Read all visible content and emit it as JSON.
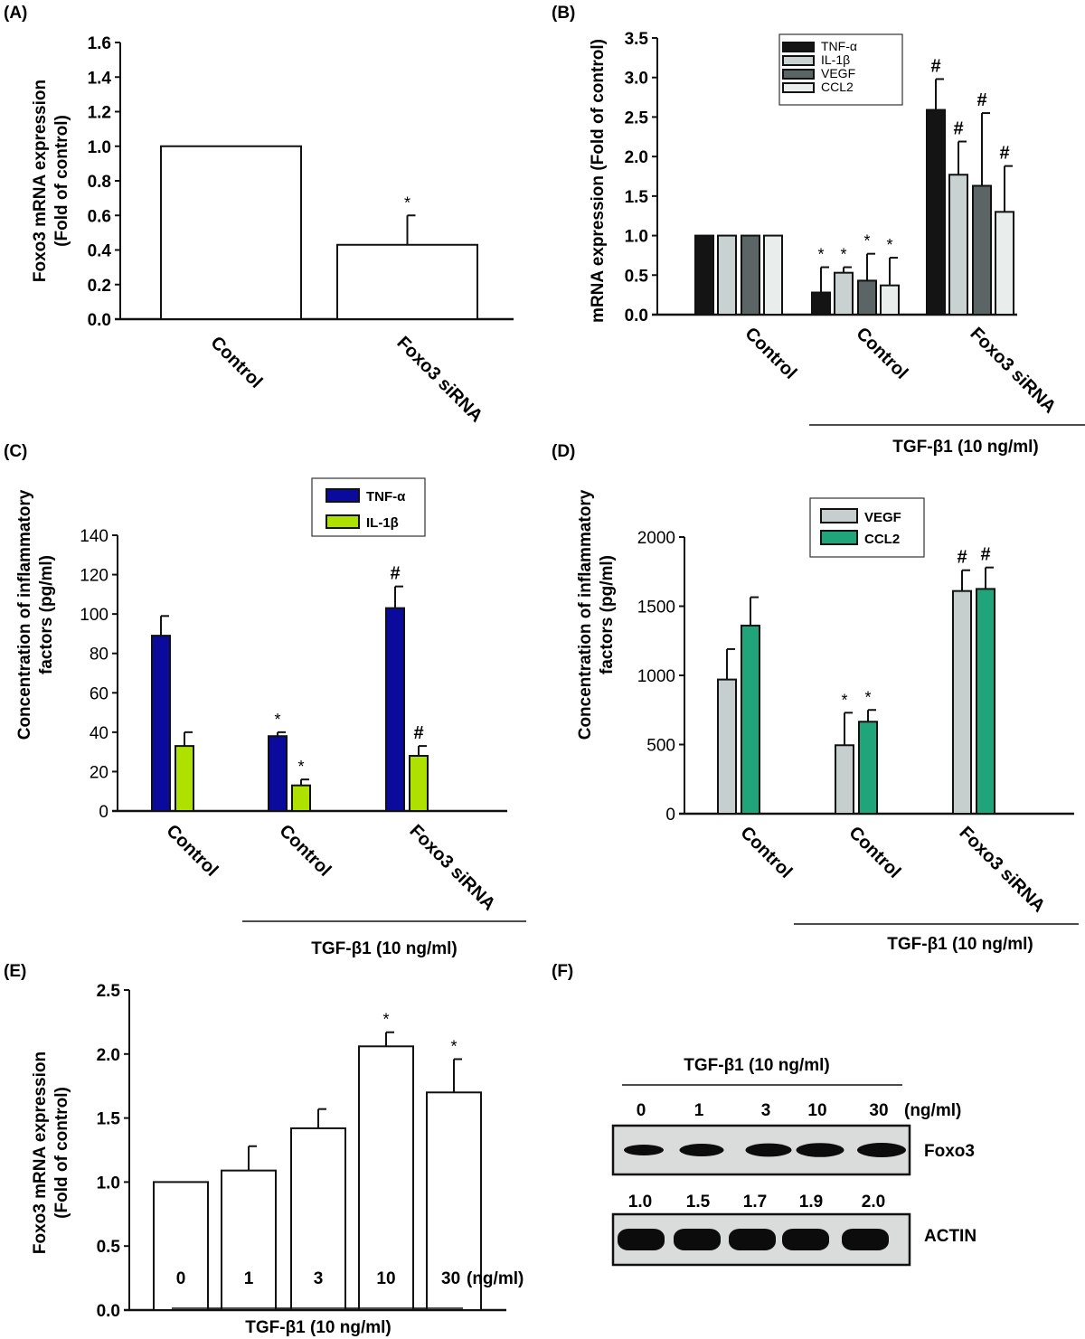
{
  "chart_data": [
    {
      "panel": "(A)",
      "type": "bar",
      "title": "",
      "xlabel": "",
      "ylabel": "Foxo3 mRNA expression\n(Fold of control)",
      "ylim": [
        0,
        1.6
      ],
      "yticks": [
        "0.0",
        "0.2",
        "0.4",
        "0.6",
        "0.8",
        "1.0",
        "1.2",
        "1.4",
        "1.6"
      ],
      "categories": [
        "Control",
        "Foxo3 siRNA"
      ],
      "series": [
        {
          "name": "Foxo3",
          "color": "#ffffff",
          "values": [
            1.0,
            0.43
          ],
          "error_upper": [
            null,
            0.6
          ],
          "marks": [
            "",
            "*"
          ]
        }
      ],
      "group_label": ""
    },
    {
      "panel": "(B)",
      "type": "bar",
      "title": "",
      "xlabel": "",
      "ylabel": "mRNA expression (Fold of control)",
      "ylim": [
        0,
        3.5
      ],
      "yticks": [
        "0.0",
        "0.5",
        "1.0",
        "1.5",
        "2.0",
        "2.5",
        "3.0",
        "3.5"
      ],
      "categories": [
        "Control",
        "Control",
        "Foxo3 siRNA"
      ],
      "legend": "top-center",
      "series": [
        {
          "name": "TNF-α",
          "color": "#141414",
          "values": [
            1.0,
            0.28,
            2.59
          ],
          "error_upper": [
            null,
            0.6,
            2.98
          ],
          "marks": [
            "",
            "*",
            "#"
          ]
        },
        {
          "name": "IL-1β",
          "color": "#c9d1d1",
          "values": [
            1.0,
            0.53,
            1.77
          ],
          "error_upper": [
            null,
            0.6,
            2.19
          ],
          "marks": [
            "",
            "*",
            "#"
          ]
        },
        {
          "name": "VEGF",
          "color": "#5b6565",
          "values": [
            1.0,
            0.43,
            1.63
          ],
          "error_upper": [
            null,
            0.77,
            2.55
          ],
          "marks": [
            "",
            "*",
            "#"
          ]
        },
        {
          "name": "CCL2",
          "color": "#e9edeb",
          "values": [
            1.0,
            0.37,
            1.3
          ],
          "error_upper": [
            null,
            0.72,
            1.88
          ],
          "marks": [
            "",
            "*",
            "#"
          ]
        }
      ],
      "group_label": "TGF-β1 (10 ng/ml)"
    },
    {
      "panel": "(C)",
      "type": "bar",
      "title": "",
      "xlabel": "",
      "ylabel": "Concentration of inflammatory\nfactors (pg/ml)",
      "ylim": [
        0,
        140
      ],
      "yticks": [
        "0",
        "20",
        "40",
        "60",
        "80",
        "100",
        "120",
        "140"
      ],
      "categories": [
        "Control",
        "Control",
        "Foxo3 siRNA"
      ],
      "legend": "top-right",
      "series": [
        {
          "name": "TNF-α",
          "color": "#0a0a9c",
          "values": [
            89,
            38,
            103
          ],
          "error_upper": [
            99,
            40,
            114
          ],
          "marks": [
            "",
            "*",
            "#"
          ]
        },
        {
          "name": "IL-1β",
          "color": "#aee000",
          "values": [
            33,
            13,
            28
          ],
          "error_upper": [
            40,
            16,
            33
          ],
          "marks": [
            "",
            "*",
            "#"
          ]
        }
      ],
      "group_label": "TGF-β1 (10 ng/ml)"
    },
    {
      "panel": "(D)",
      "type": "bar",
      "title": "",
      "xlabel": "",
      "ylabel": "Concentration of inflammatory\nfactors (pg/ml)",
      "ylim": [
        0,
        2000
      ],
      "yticks": [
        "0",
        "500",
        "1000",
        "1500",
        "2000"
      ],
      "categories": [
        "Control",
        "Control",
        "Foxo3 siRNA"
      ],
      "legend": "top-center",
      "series": [
        {
          "name": "VEGF",
          "color": "#c6cfcd",
          "values": [
            970,
            495,
            1610
          ],
          "error_upper": [
            1190,
            730,
            1760
          ],
          "marks": [
            "",
            "*",
            "#"
          ]
        },
        {
          "name": "CCL2",
          "color": "#20a57a",
          "values": [
            1360,
            665,
            1625
          ],
          "error_upper": [
            1565,
            750,
            1780
          ],
          "marks": [
            "",
            "*",
            "#"
          ]
        }
      ],
      "group_label": "TGF-β1 (10 ng/ml)"
    },
    {
      "panel": "(E)",
      "type": "bar",
      "title": "",
      "xlabel": "TGF-β1 (10 ng/ml)",
      "ylabel": "Foxo3 mRNA expression\n(Fold of control)",
      "ylim": [
        0,
        2.5
      ],
      "yticks": [
        "0.0",
        "0.5",
        "1.0",
        "1.5",
        "2.0",
        "2.5"
      ],
      "categories": [
        "0",
        "1",
        "3",
        "10",
        "30"
      ],
      "unit_suffix": "(ng/ml)",
      "series": [
        {
          "name": "Foxo3",
          "color": "#ffffff",
          "values": [
            1.0,
            1.09,
            1.42,
            2.06,
            1.7
          ],
          "error_upper": [
            null,
            1.28,
            1.57,
            2.17,
            1.96
          ],
          "marks": [
            "",
            "",
            "",
            "*",
            "*"
          ]
        }
      ],
      "group_label": "TGF-β1 (10 ng/ml)"
    }
  ],
  "blot": {
    "panel": "(F)",
    "header": "TGF-β1 (10 ng/ml)",
    "doses": [
      "0",
      "1",
      "3",
      "10",
      "30"
    ],
    "dose_unit": "(ng/ml)",
    "rows": [
      {
        "label": "Foxo3",
        "relative_intensity": [
          1.0,
          1.5,
          1.7,
          1.9,
          2.0
        ]
      },
      {
        "label": "ACTIN"
      }
    ],
    "quantification": [
      "1.0",
      "1.5",
      "1.7",
      "1.9",
      "2.0"
    ]
  }
}
